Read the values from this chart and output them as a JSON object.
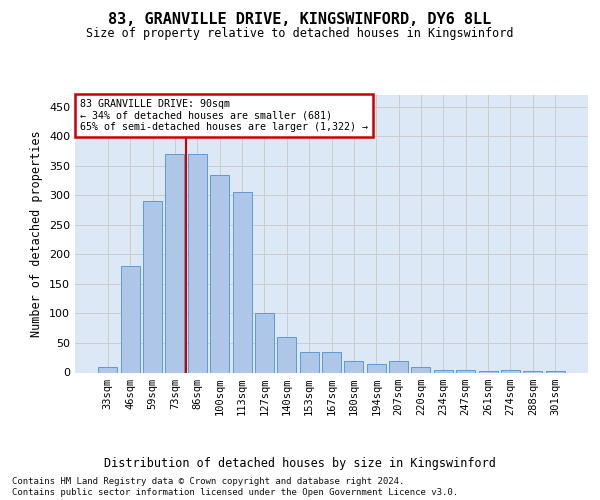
{
  "title": "83, GRANVILLE DRIVE, KINGSWINFORD, DY6 8LL",
  "subtitle": "Size of property relative to detached houses in Kingswinford",
  "xlabel": "Distribution of detached houses by size in Kingswinford",
  "ylabel": "Number of detached properties",
  "categories": [
    "33sqm",
    "46sqm",
    "59sqm",
    "73sqm",
    "86sqm",
    "100sqm",
    "113sqm",
    "127sqm",
    "140sqm",
    "153sqm",
    "167sqm",
    "180sqm",
    "194sqm",
    "207sqm",
    "220sqm",
    "234sqm",
    "247sqm",
    "261sqm",
    "274sqm",
    "288sqm",
    "301sqm"
  ],
  "values": [
    10,
    180,
    290,
    370,
    370,
    335,
    305,
    100,
    60,
    35,
    35,
    20,
    15,
    20,
    10,
    5,
    5,
    3,
    5,
    3,
    2
  ],
  "bar_color": "#aec6e8",
  "bar_edge_color": "#5b9bd5",
  "vline_color": "#cc0000",
  "vline_x_index": 3.5,
  "annotation_text": "83 GRANVILLE DRIVE: 90sqm\n← 34% of detached houses are smaller (681)\n65% of semi-detached houses are larger (1,322) →",
  "annotation_box_color": "#ffffff",
  "annotation_box_edge": "#cc0000",
  "grid_color": "#cccccc",
  "background_color": "#dce8f5",
  "footer": "Contains HM Land Registry data © Crown copyright and database right 2024.\nContains public sector information licensed under the Open Government Licence v3.0.",
  "ylim": [
    0,
    470
  ],
  "yticks": [
    0,
    50,
    100,
    150,
    200,
    250,
    300,
    350,
    400,
    450
  ]
}
